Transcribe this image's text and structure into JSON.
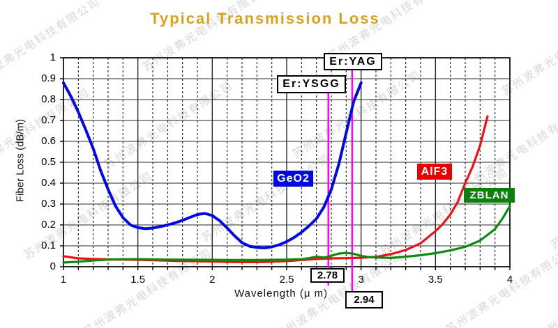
{
  "title": "Typical Transmission Loss",
  "title_color": "#D8A21D",
  "watermark": {
    "text": "苏州波弗光电科技有限公司"
  },
  "axes": {
    "x_label": "Wavelength (μ m)",
    "y_label": "Fiber Loss (dB/m)",
    "x_ticks": [
      "1",
      "1.5",
      "2",
      "2.5",
      "3",
      "3.5",
      "4"
    ],
    "x_tick_values": [
      1,
      1.5,
      2,
      2.5,
      3,
      3.5,
      4
    ],
    "y_ticks": [
      "1",
      "0.9",
      "0.8",
      "0.7",
      "0.6",
      "0.5",
      "0.4",
      "0.3",
      "0.2",
      "0.1",
      "0"
    ],
    "y_tick_values": [
      1,
      0.9,
      0.8,
      0.7,
      0.6,
      0.5,
      0.4,
      0.3,
      0.2,
      0.1,
      0
    ]
  },
  "chart_data": {
    "type": "line",
    "title": "Typical Transmission Loss",
    "xlabel": "Wavelength (μ m)",
    "ylabel": "Fiber Loss (dB/m)",
    "xlim": [
      1,
      4
    ],
    "ylim": [
      0,
      1
    ],
    "grid": true,
    "series": [
      {
        "name": "GeO2",
        "color": "#0008E8",
        "points": [
          [
            1.0,
            0.88
          ],
          [
            1.05,
            0.815
          ],
          [
            1.1,
            0.74
          ],
          [
            1.15,
            0.655
          ],
          [
            1.2,
            0.565
          ],
          [
            1.25,
            0.46
          ],
          [
            1.3,
            0.37
          ],
          [
            1.35,
            0.29
          ],
          [
            1.4,
            0.235
          ],
          [
            1.45,
            0.2
          ],
          [
            1.5,
            0.187
          ],
          [
            1.55,
            0.182
          ],
          [
            1.6,
            0.185
          ],
          [
            1.65,
            0.192
          ],
          [
            1.7,
            0.2
          ],
          [
            1.75,
            0.21
          ],
          [
            1.8,
            0.222
          ],
          [
            1.85,
            0.236
          ],
          [
            1.9,
            0.25
          ],
          [
            1.95,
            0.255
          ],
          [
            2.0,
            0.245
          ],
          [
            2.05,
            0.22
          ],
          [
            2.1,
            0.185
          ],
          [
            2.15,
            0.148
          ],
          [
            2.2,
            0.115
          ],
          [
            2.25,
            0.098
          ],
          [
            2.3,
            0.092
          ],
          [
            2.35,
            0.09
          ],
          [
            2.4,
            0.095
          ],
          [
            2.45,
            0.105
          ],
          [
            2.5,
            0.12
          ],
          [
            2.55,
            0.14
          ],
          [
            2.6,
            0.165
          ],
          [
            2.65,
            0.195
          ],
          [
            2.7,
            0.23
          ],
          [
            2.75,
            0.285
          ],
          [
            2.8,
            0.37
          ],
          [
            2.85,
            0.49
          ],
          [
            2.9,
            0.64
          ],
          [
            2.95,
            0.79
          ],
          [
            3.0,
            0.88
          ]
        ]
      },
      {
        "name": "AlF3",
        "color": "#EE1111",
        "points": [
          [
            1.0,
            0.05
          ],
          [
            1.05,
            0.045
          ],
          [
            1.1,
            0.04
          ],
          [
            1.2,
            0.037
          ],
          [
            1.3,
            0.035
          ],
          [
            1.4,
            0.034
          ],
          [
            1.5,
            0.033
          ],
          [
            1.6,
            0.031
          ],
          [
            1.7,
            0.029
          ],
          [
            1.8,
            0.027
          ],
          [
            1.9,
            0.026
          ],
          [
            2.0,
            0.025
          ],
          [
            2.1,
            0.023
          ],
          [
            2.2,
            0.022
          ],
          [
            2.3,
            0.022
          ],
          [
            2.4,
            0.024
          ],
          [
            2.5,
            0.027
          ],
          [
            2.6,
            0.032
          ],
          [
            2.7,
            0.037
          ],
          [
            2.8,
            0.04
          ],
          [
            2.9,
            0.041
          ],
          [
            3.0,
            0.043
          ],
          [
            3.1,
            0.047
          ],
          [
            3.2,
            0.06
          ],
          [
            3.3,
            0.08
          ],
          [
            3.4,
            0.112
          ],
          [
            3.5,
            0.17
          ],
          [
            3.55,
            0.205
          ],
          [
            3.6,
            0.25
          ],
          [
            3.65,
            0.31
          ],
          [
            3.7,
            0.4
          ],
          [
            3.75,
            0.48
          ],
          [
            3.8,
            0.58
          ],
          [
            3.85,
            0.72
          ]
        ]
      },
      {
        "name": "ZBLAN",
        "color": "#0E8A0E",
        "points": [
          [
            1.0,
            0.02
          ],
          [
            1.1,
            0.024
          ],
          [
            1.2,
            0.03
          ],
          [
            1.3,
            0.034
          ],
          [
            1.4,
            0.036
          ],
          [
            1.5,
            0.036
          ],
          [
            1.6,
            0.035
          ],
          [
            1.7,
            0.034
          ],
          [
            1.8,
            0.034
          ],
          [
            1.9,
            0.033
          ],
          [
            2.0,
            0.033
          ],
          [
            2.1,
            0.032
          ],
          [
            2.2,
            0.032
          ],
          [
            2.3,
            0.032
          ],
          [
            2.4,
            0.033
          ],
          [
            2.5,
            0.034
          ],
          [
            2.6,
            0.036
          ],
          [
            2.65,
            0.041
          ],
          [
            2.7,
            0.048
          ],
          [
            2.75,
            0.044
          ],
          [
            2.8,
            0.052
          ],
          [
            2.85,
            0.063
          ],
          [
            2.9,
            0.066
          ],
          [
            2.95,
            0.062
          ],
          [
            3.0,
            0.052
          ],
          [
            3.05,
            0.046
          ],
          [
            3.1,
            0.044
          ],
          [
            3.2,
            0.042
          ],
          [
            3.3,
            0.048
          ],
          [
            3.4,
            0.055
          ],
          [
            3.5,
            0.065
          ],
          [
            3.6,
            0.078
          ],
          [
            3.7,
            0.095
          ],
          [
            3.8,
            0.125
          ],
          [
            3.9,
            0.18
          ],
          [
            3.95,
            0.23
          ],
          [
            4.0,
            0.29
          ]
        ]
      }
    ],
    "markers": [
      {
        "value": 2.78,
        "label": "2.78",
        "color": "#FF00FF"
      },
      {
        "value": 2.94,
        "label": "2.94",
        "color": "#FF00FF"
      }
    ],
    "annotations": [
      {
        "label": "Er:YSGG",
        "marker_value": 2.78
      },
      {
        "label": "Er:YAG",
        "marker_value": 2.94
      }
    ],
    "series_labels": [
      {
        "label": "GeO2",
        "bg": "#0008E0"
      },
      {
        "label": "AlF3",
        "bg": "#E60000"
      },
      {
        "label": "ZBLAN",
        "bg": "#0E7E0E"
      }
    ]
  }
}
